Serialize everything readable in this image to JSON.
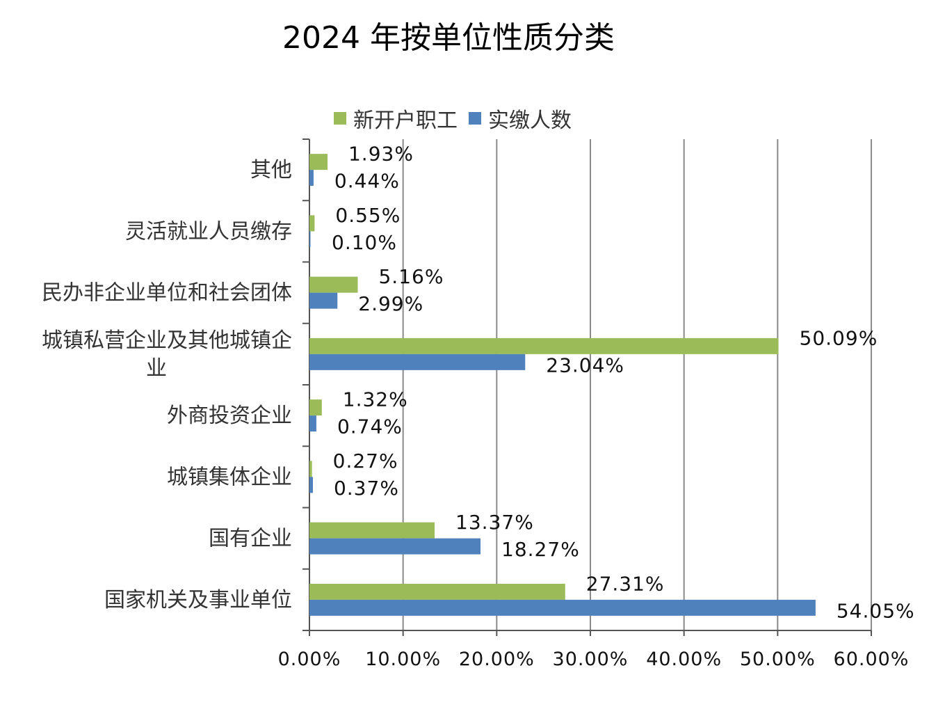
{
  "chart_data": {
    "type": "bar",
    "orientation": "horizontal",
    "title": "2024 年按单位性质分类",
    "categories": [
      [
        "其他"
      ],
      [
        "灵活就业人员缴存"
      ],
      [
        "民办非企业单位和社会团体"
      ],
      [
        "城镇私营企业及其他城镇企",
        "业"
      ],
      [
        "外商投资企业"
      ],
      [
        "城镇集体企业"
      ],
      [
        "国有企业"
      ],
      [
        "国家机关及事业单位"
      ]
    ],
    "series": [
      {
        "name": "新开户职工",
        "color": "#9BBB59",
        "values": [
          1.93,
          0.55,
          5.16,
          50.09,
          1.32,
          0.27,
          13.37,
          27.31
        ],
        "labels": [
          "1.93%",
          "0.55%",
          "5.16%",
          "50.09%",
          "1.32%",
          "0.27%",
          "13.37%",
          "27.31%"
        ]
      },
      {
        "name": "实缴人数",
        "color": "#4F81BD",
        "values": [
          0.44,
          0.1,
          2.99,
          23.04,
          0.74,
          0.37,
          18.27,
          54.05
        ],
        "labels": [
          "0.44%",
          "0.10%",
          "2.99%",
          "23.04%",
          "0.74%",
          "0.37%",
          "18.27%",
          "54.05%"
        ]
      }
    ],
    "xlim": [
      0,
      60
    ],
    "xticks": [
      "0.00%",
      "10.00%",
      "20.00%",
      "30.00%",
      "40.00%",
      "50.00%",
      "60.00%"
    ],
    "grid": true,
    "legend": "top"
  }
}
